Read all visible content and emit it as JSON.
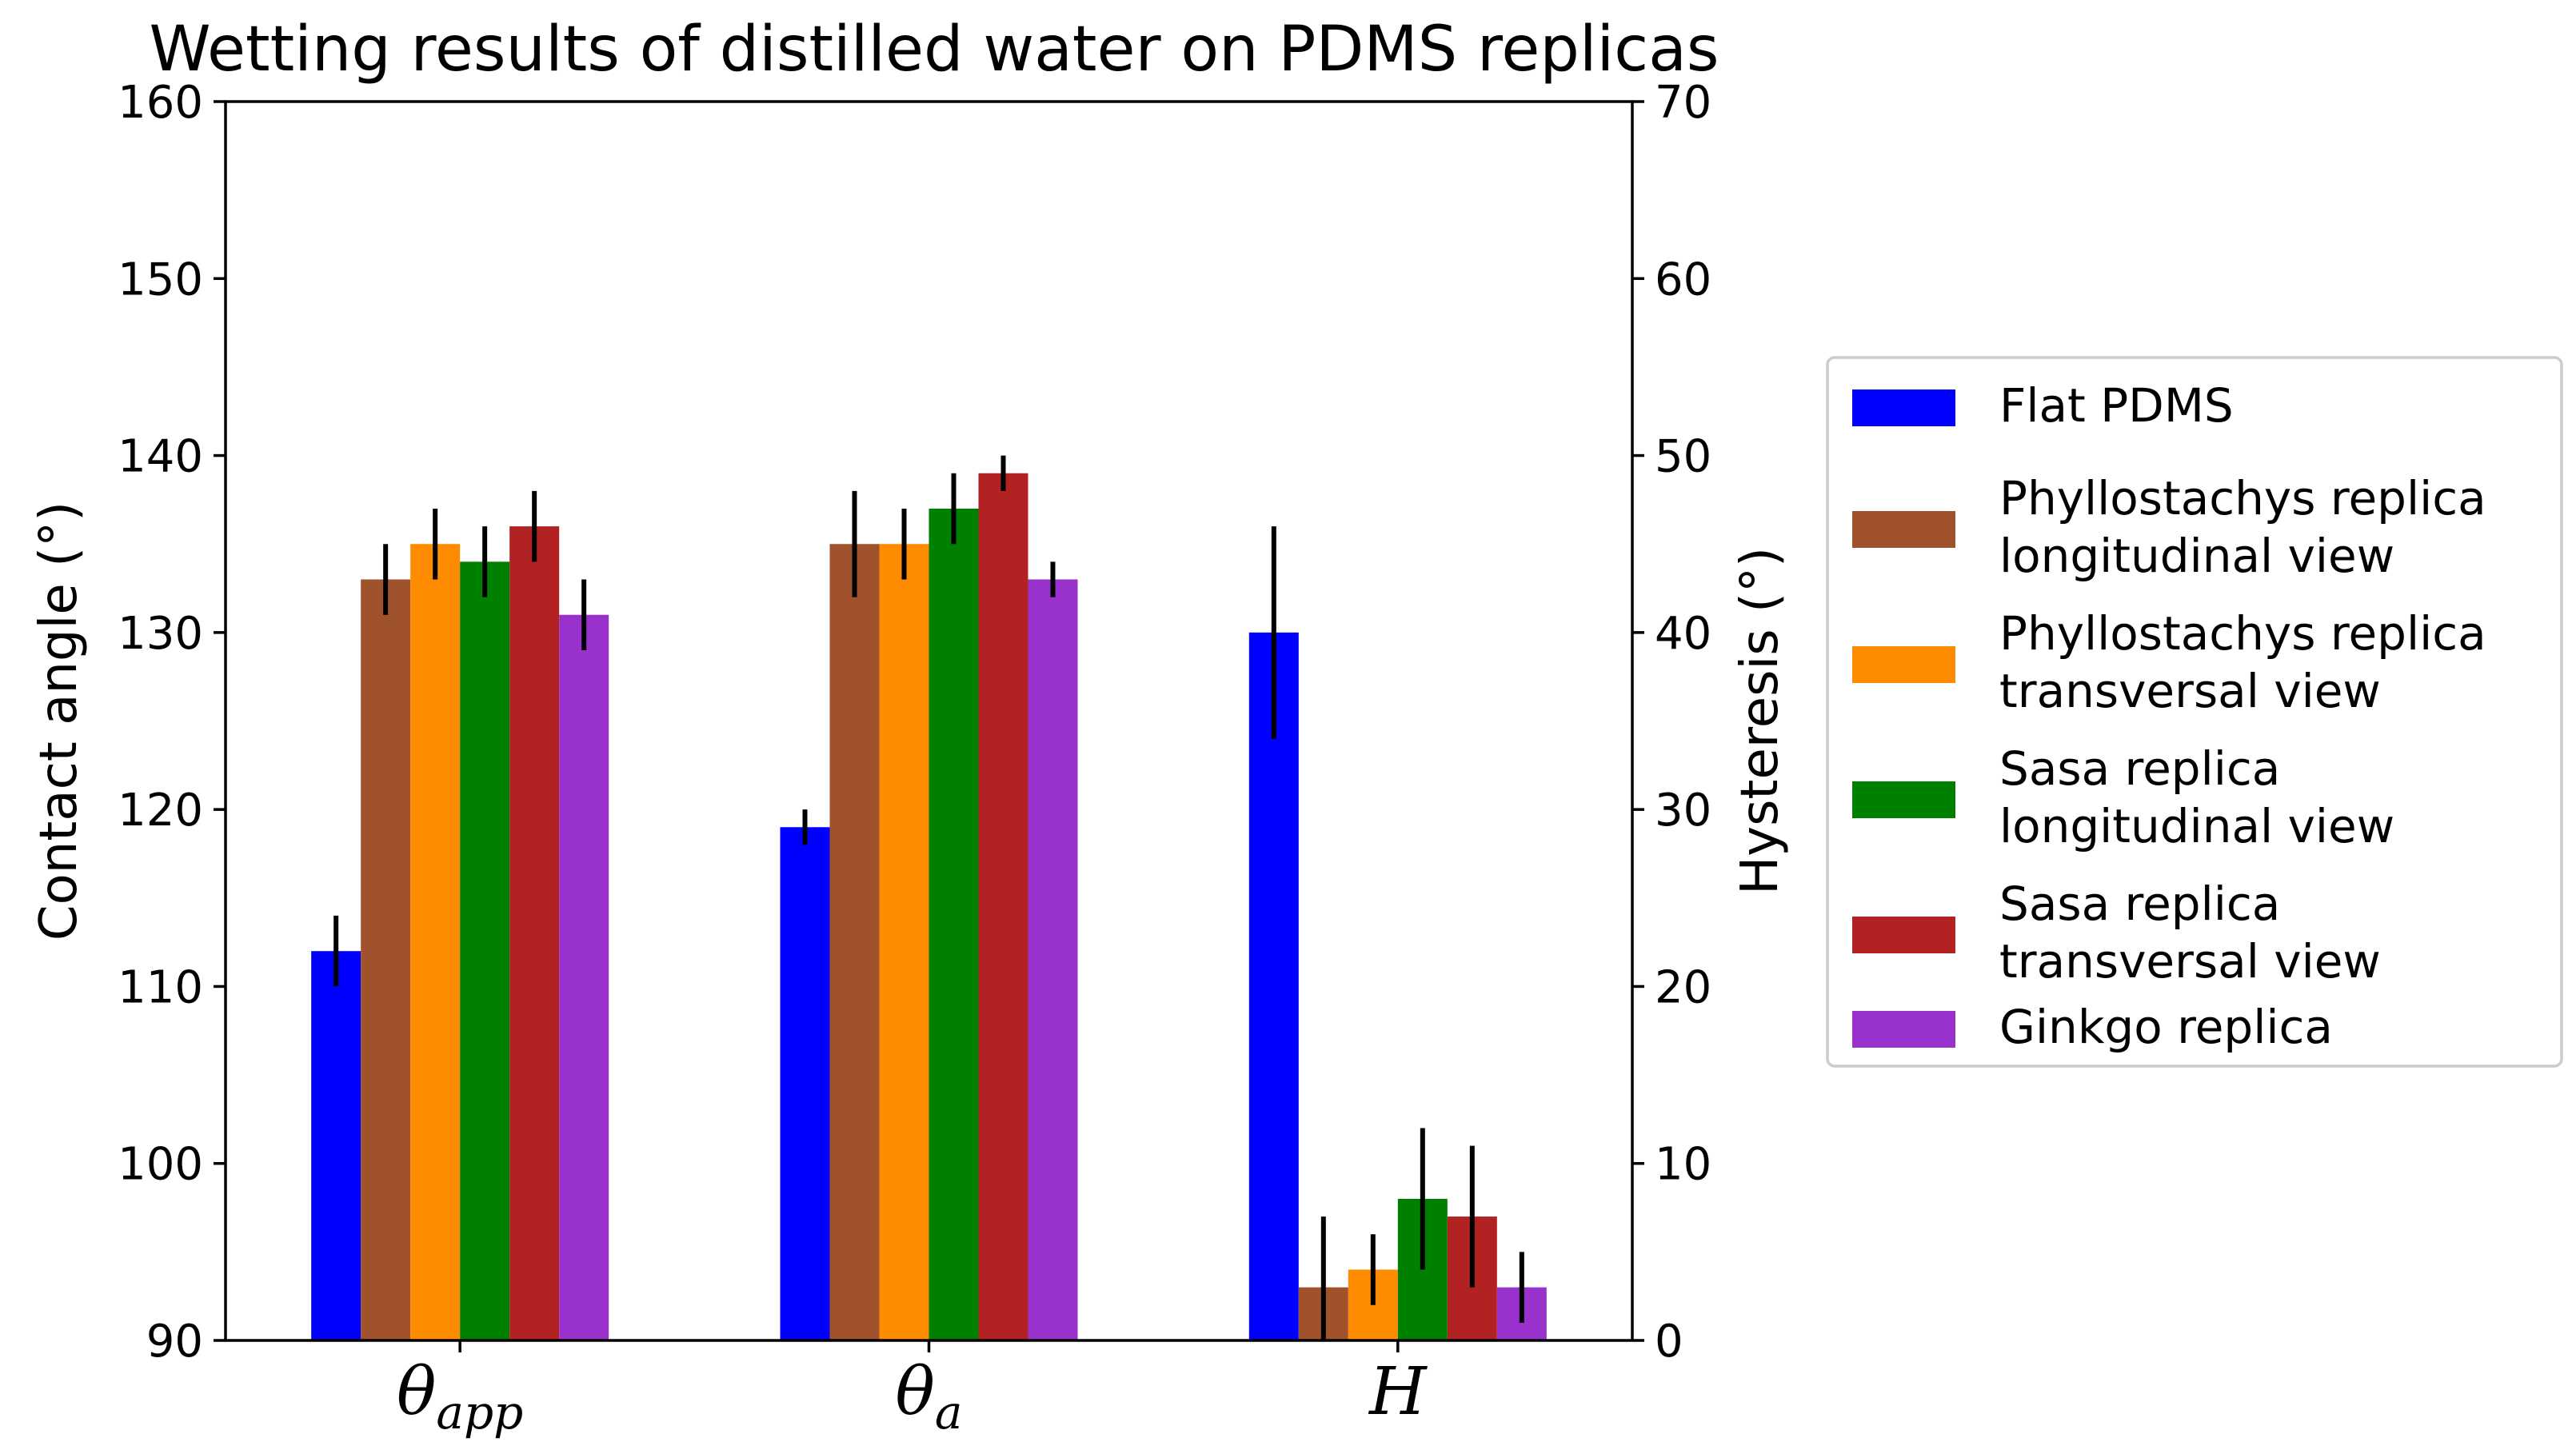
{
  "chart_data": {
    "type": "bar",
    "title": "Wetting results of distilled water on PDMS replicas",
    "ylabel_left": "Contact angle (°)",
    "ylabel_right": "Hysteresis (°)",
    "ylim_left": [
      90,
      160
    ],
    "ylim_right": [
      0,
      70
    ],
    "yticks_left": [
      "90",
      "100",
      "110",
      "120",
      "130",
      "140",
      "150",
      "160"
    ],
    "yticks_right": [
      "0",
      "10",
      "20",
      "30",
      "40",
      "50",
      "60",
      "70"
    ],
    "categories": [
      {
        "base": "θ",
        "sub": "app",
        "axis": "left"
      },
      {
        "base": "θ",
        "sub": "a",
        "axis": "left"
      },
      {
        "base": "H",
        "sub": "",
        "axis": "right"
      }
    ],
    "series": [
      {
        "name": "Flat PDMS",
        "color": "#0000ff",
        "values": [
          112,
          119,
          40
        ],
        "errors": [
          2,
          1,
          6
        ]
      },
      {
        "name": "Phyllostachys replica longitudinal view",
        "legend_lines": [
          "Phyllostachys replica",
          "longitudinal view"
        ],
        "color": "#a0522d",
        "values": [
          133,
          135,
          3
        ],
        "errors": [
          2,
          3,
          4
        ]
      },
      {
        "name": "Phyllostachys replica transversal view",
        "legend_lines": [
          "Phyllostachys replica",
          "transversal view"
        ],
        "color": "#ff8c00",
        "values": [
          135,
          135,
          4
        ],
        "errors": [
          2,
          2,
          2
        ]
      },
      {
        "name": "Sasa replica longitudinal view",
        "legend_lines": [
          "Sasa replica",
          "longitudinal view"
        ],
        "color": "#008000",
        "values": [
          134,
          137,
          8
        ],
        "errors": [
          2,
          2,
          4
        ]
      },
      {
        "name": "Sasa replica transversal view",
        "legend_lines": [
          "Sasa replica",
          "transversal view"
        ],
        "color": "#b22222",
        "values": [
          136,
          139,
          7
        ],
        "errors": [
          2,
          1,
          4
        ]
      },
      {
        "name": "Ginkgo replica",
        "legend_lines": [
          "Ginkgo replica"
        ],
        "color": "#9932cc",
        "values": [
          131,
          133,
          3
        ],
        "errors": [
          2,
          1,
          2
        ]
      }
    ],
    "legend_position": "right"
  }
}
